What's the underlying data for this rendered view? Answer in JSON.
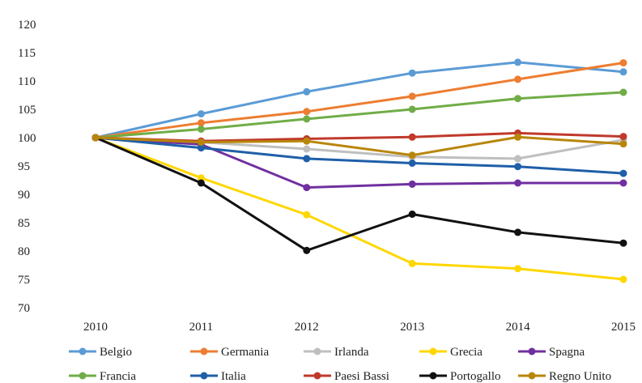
{
  "chart_data": {
    "type": "line",
    "x": [
      "2010",
      "2011",
      "2012",
      "2013",
      "2014",
      "2015"
    ],
    "ylim": [
      70,
      120
    ],
    "yticks": [
      70,
      75,
      80,
      85,
      90,
      95,
      100,
      105,
      110,
      115,
      120
    ],
    "grid": false,
    "legend_position": "bottom",
    "series": [
      {
        "name": "Belgio",
        "color": "#5b9bd5",
        "values": [
          100,
          104.2,
          108.1,
          111.4,
          113.3,
          111.6
        ]
      },
      {
        "name": "Germania",
        "color": "#ed7d31",
        "values": [
          100,
          102.6,
          104.6,
          107.3,
          110.3,
          113.2
        ]
      },
      {
        "name": "Irlanda",
        "color": "#bfbfbf",
        "values": [
          100,
          99.2,
          98.0,
          96.6,
          96.3,
          99.6
        ]
      },
      {
        "name": "Grecia",
        "color": "#ffd700",
        "values": [
          100,
          92.9,
          86.4,
          77.8,
          76.9,
          75.0
        ]
      },
      {
        "name": "Spagna",
        "color": "#7030a0",
        "values": [
          100,
          98.8,
          91.2,
          91.8,
          92.0,
          92.0
        ]
      },
      {
        "name": "Francia",
        "color": "#70ad47",
        "values": [
          100,
          101.5,
          103.3,
          105.0,
          106.9,
          108.0
        ]
      },
      {
        "name": "Italia",
        "color": "#1f5fa8",
        "values": [
          100,
          98.2,
          96.3,
          95.5,
          94.9,
          93.7
        ]
      },
      {
        "name": "Paesi Bassi",
        "color": "#c0392b",
        "values": [
          100,
          99.4,
          99.8,
          100.1,
          100.8,
          100.2
        ]
      },
      {
        "name": "Portogallo",
        "color": "#111111",
        "values": [
          100,
          92.0,
          80.1,
          86.5,
          83.3,
          81.4
        ]
      },
      {
        "name": "Regno Unito",
        "color": "#b8860b",
        "values": [
          100,
          99.2,
          99.4,
          96.9,
          100.1,
          98.9
        ]
      }
    ]
  }
}
